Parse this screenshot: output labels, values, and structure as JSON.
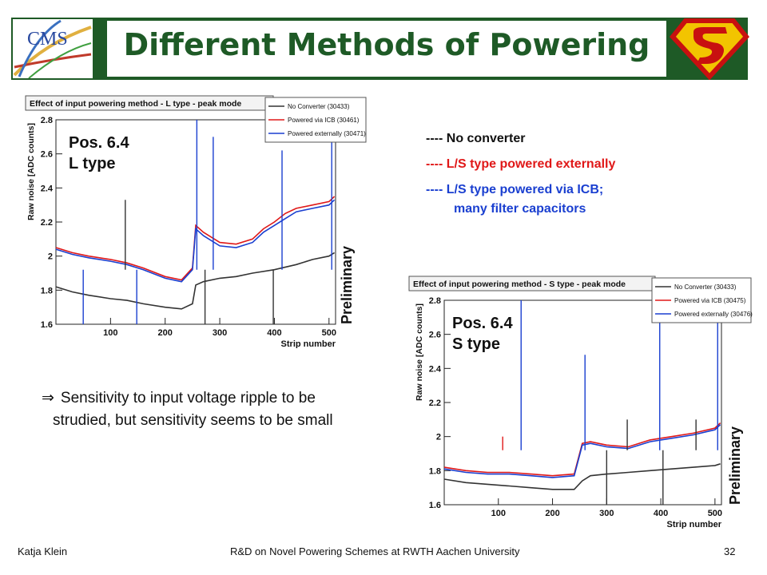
{
  "slide": {
    "title": "Different Methods of Powering",
    "cms_logo_text": "CMS",
    "footer_left": "Katja Klein",
    "footer_center": "R&D on Novel Powering Schemes at RWTH Aachen University",
    "footer_right": "32"
  },
  "legend_text": {
    "no_converter": "---- No converter",
    "external": "---- L/S type powered externally",
    "icb_line1": "---- L/S type powered via ICB;",
    "icb_line2": "many filter capacitors"
  },
  "bullet": {
    "arrow": "⇒",
    "line1": "Sensitivity to input voltage ripple to be",
    "line2": "strudied, but sensitivity seems to be small"
  },
  "colors": {
    "header_green": "#1e5a26",
    "black_series": "#333333",
    "red_series": "#e01818",
    "blue_series": "#1a3fd0"
  },
  "chart_data": [
    {
      "type": "line",
      "title": "Effect of input powering method - L type - peak mode",
      "xlabel": "Strip number",
      "ylabel": "Raw noise [ADC counts]",
      "xlim": [
        0,
        512
      ],
      "ylim": [
        1.6,
        2.8
      ],
      "xticks": [
        100,
        200,
        300,
        400,
        500
      ],
      "yticks": [
        1.6,
        1.8,
        2.0,
        2.2,
        2.4,
        2.6,
        2.8
      ],
      "ytick_labels": [
        "1.6",
        "1.8",
        "2",
        "2.2",
        "2.4",
        "2.6",
        "2.8"
      ],
      "position_label": [
        "Pos. 6.4",
        "L type"
      ],
      "annotation": "Preliminary",
      "series": [
        {
          "name": "No Converter (30433)",
          "color": "#333333",
          "x": [
            0,
            30,
            60,
            100,
            130,
            160,
            200,
            230,
            250,
            256,
            270,
            300,
            330,
            360,
            400,
            440,
            470,
            500,
            510
          ],
          "values": [
            1.82,
            1.79,
            1.77,
            1.75,
            1.74,
            1.72,
            1.7,
            1.69,
            1.72,
            1.83,
            1.85,
            1.87,
            1.88,
            1.9,
            1.92,
            1.95,
            1.98,
            2.0,
            2.02
          ]
        },
        {
          "name": "Powered via ICB (30461)",
          "color": "#e01818",
          "x": [
            0,
            30,
            60,
            100,
            130,
            160,
            200,
            230,
            250,
            256,
            270,
            300,
            330,
            360,
            380,
            400,
            420,
            440,
            470,
            500,
            510
          ],
          "values": [
            2.05,
            2.02,
            2.0,
            1.98,
            1.96,
            1.93,
            1.88,
            1.86,
            1.93,
            2.18,
            2.14,
            2.08,
            2.07,
            2.1,
            2.16,
            2.2,
            2.25,
            2.28,
            2.3,
            2.32,
            2.35
          ]
        },
        {
          "name": "Powered externally (30471)",
          "color": "#1a3fd0",
          "x": [
            0,
            30,
            60,
            100,
            130,
            160,
            200,
            230,
            250,
            256,
            270,
            300,
            330,
            360,
            380,
            400,
            420,
            440,
            470,
            500,
            510
          ],
          "values": [
            2.04,
            2.01,
            1.99,
            1.97,
            1.95,
            1.92,
            1.87,
            1.85,
            1.92,
            2.16,
            2.12,
            2.06,
            2.05,
            2.08,
            2.14,
            2.18,
            2.22,
            2.26,
            2.28,
            2.3,
            2.33
          ]
        }
      ],
      "spikes": [
        {
          "x": 50,
          "y": 1.6,
          "color": "#1a3fd0"
        },
        {
          "x": 127,
          "y": 2.33,
          "color": "#333333"
        },
        {
          "x": 148,
          "y": 1.6,
          "color": "#1a3fd0"
        },
        {
          "x": 258,
          "y": 2.8,
          "color": "#1a3fd0"
        },
        {
          "x": 273,
          "y": 1.6,
          "color": "#333333"
        },
        {
          "x": 288,
          "y": 2.7,
          "color": "#1a3fd0"
        },
        {
          "x": 398,
          "y": 1.6,
          "color": "#333333"
        },
        {
          "x": 414,
          "y": 2.62,
          "color": "#1a3fd0"
        },
        {
          "x": 505,
          "y": 2.78,
          "color": "#1a3fd0"
        }
      ]
    },
    {
      "type": "line",
      "title": "Effect of input powering method - S type - peak mode",
      "xlabel": "Strip number",
      "ylabel": "Raw noise [ADC counts]",
      "xlim": [
        0,
        512
      ],
      "ylim": [
        1.6,
        2.8
      ],
      "xticks": [
        100,
        200,
        300,
        400,
        500
      ],
      "yticks": [
        1.6,
        1.8,
        2.0,
        2.2,
        2.4,
        2.6,
        2.8
      ],
      "ytick_labels": [
        "1.6",
        "1.8",
        "2",
        "2.2",
        "2.4",
        "2.6",
        "2.8"
      ],
      "position_label": [
        "Pos. 6.4",
        "S type"
      ],
      "annotation": "Preliminary",
      "series": [
        {
          "name": "No Converter (30433)",
          "color": "#333333",
          "x": [
            0,
            40,
            80,
            120,
            160,
            200,
            240,
            255,
            270,
            300,
            340,
            380,
            420,
            460,
            500,
            510
          ],
          "values": [
            1.75,
            1.73,
            1.72,
            1.71,
            1.7,
            1.69,
            1.69,
            1.74,
            1.77,
            1.78,
            1.79,
            1.8,
            1.81,
            1.82,
            1.83,
            1.84
          ]
        },
        {
          "name": "Powered via ICB (30475)",
          "color": "#e01818",
          "x": [
            0,
            40,
            80,
            120,
            160,
            200,
            240,
            255,
            270,
            300,
            340,
            380,
            420,
            460,
            500,
            510
          ],
          "values": [
            1.82,
            1.8,
            1.79,
            1.79,
            1.78,
            1.77,
            1.78,
            1.96,
            1.97,
            1.95,
            1.94,
            1.98,
            2.0,
            2.02,
            2.05,
            2.08
          ]
        },
        {
          "name": "Powered externally (30476)",
          "color": "#1a3fd0",
          "x": [
            0,
            40,
            80,
            120,
            160,
            200,
            240,
            255,
            270,
            300,
            340,
            380,
            420,
            460,
            500,
            510
          ],
          "values": [
            1.81,
            1.79,
            1.78,
            1.78,
            1.77,
            1.76,
            1.77,
            1.95,
            1.96,
            1.94,
            1.93,
            1.97,
            1.99,
            2.01,
            2.04,
            2.07
          ]
        }
      ],
      "spikes": [
        {
          "x": 108,
          "y": 2.0,
          "color": "#e01818"
        },
        {
          "x": 142,
          "y": 2.8,
          "color": "#1a3fd0"
        },
        {
          "x": 260,
          "y": 2.48,
          "color": "#1a3fd0"
        },
        {
          "x": 300,
          "y": 1.6,
          "color": "#333333"
        },
        {
          "x": 338,
          "y": 2.1,
          "color": "#333333"
        },
        {
          "x": 398,
          "y": 2.8,
          "color": "#1a3fd0"
        },
        {
          "x": 404,
          "y": 1.6,
          "color": "#333333"
        },
        {
          "x": 465,
          "y": 2.1,
          "color": "#333333"
        },
        {
          "x": 505,
          "y": 2.78,
          "color": "#1a3fd0"
        }
      ]
    }
  ]
}
